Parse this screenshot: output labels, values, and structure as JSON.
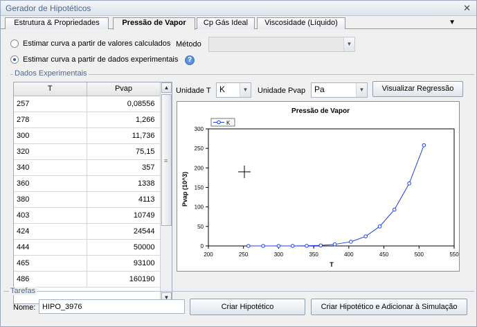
{
  "window": {
    "title": "Gerador de Hipotéticos",
    "close_glyph": "✕"
  },
  "tabs": [
    {
      "label": "Estrutura & Propriedades"
    },
    {
      "label": "Pressão de Vapor"
    },
    {
      "label": "Cp Gás Ideal"
    },
    {
      "label": "Viscosidade (Líquido)"
    }
  ],
  "tab_menu_glyph": "▼",
  "options": {
    "calc_label": "Estimar curva a partir de valores calculados",
    "exp_label": "Estimar curva a partir de dados experimentais",
    "selected": "exp",
    "method_label": "Método",
    "method_value": "",
    "help_glyph": "?"
  },
  "experimental": {
    "group_title": "Dados Experimentais",
    "columns": [
      "T",
      "Pvap"
    ],
    "rows": [
      [
        "257",
        "0,08556"
      ],
      [
        "278",
        "1,266"
      ],
      [
        "300",
        "11,736"
      ],
      [
        "320",
        "75,15"
      ],
      [
        "340",
        "357"
      ],
      [
        "360",
        "1338"
      ],
      [
        "380",
        "4113"
      ],
      [
        "403",
        "10749"
      ],
      [
        "424",
        "24544"
      ],
      [
        "444",
        "50000"
      ],
      [
        "465",
        "93100"
      ],
      [
        "486",
        "160190"
      ]
    ]
  },
  "units": {
    "t_label": "Unidade T",
    "t_value": "K",
    "p_label": "Unidade Pvap",
    "p_value": "Pa",
    "regression_button": "Visualizar Regressão"
  },
  "colors": {
    "series": "#1f3fe0",
    "title_text": "#4c6a8e",
    "accent": "#2d5ea8"
  },
  "chart_data": {
    "type": "line",
    "title": "Pressão de Vapor",
    "xlabel": "T",
    "ylabel": "Pvap (10^3)",
    "xlim": [
      200,
      550
    ],
    "ylim": [
      0,
      300
    ],
    "xticks": [
      "200",
      "250",
      "300",
      "350",
      "400",
      "450",
      "500",
      "550"
    ],
    "yticks": [
      "0",
      "50",
      "100",
      "150",
      "200",
      "250",
      "300"
    ],
    "legend": "top-left",
    "grid": false,
    "series": [
      {
        "name": "K",
        "x": [
          257,
          278,
          300,
          320,
          340,
          360,
          380,
          403,
          424,
          444,
          465,
          486,
          507
        ],
        "y": [
          8.556e-05,
          0.001266,
          0.011736,
          0.07515,
          0.357,
          1.338,
          4.113,
          10.749,
          24.544,
          50.0,
          93.1,
          160.19,
          258.0
        ]
      }
    ]
  },
  "tasks": {
    "group_title": "Tarefas",
    "name_label": "Nome:",
    "name_value": "HIPO_3976",
    "create_button": "Criar Hipotético",
    "create_add_button": "Criar Hipotético e Adicionar à Simulação"
  }
}
